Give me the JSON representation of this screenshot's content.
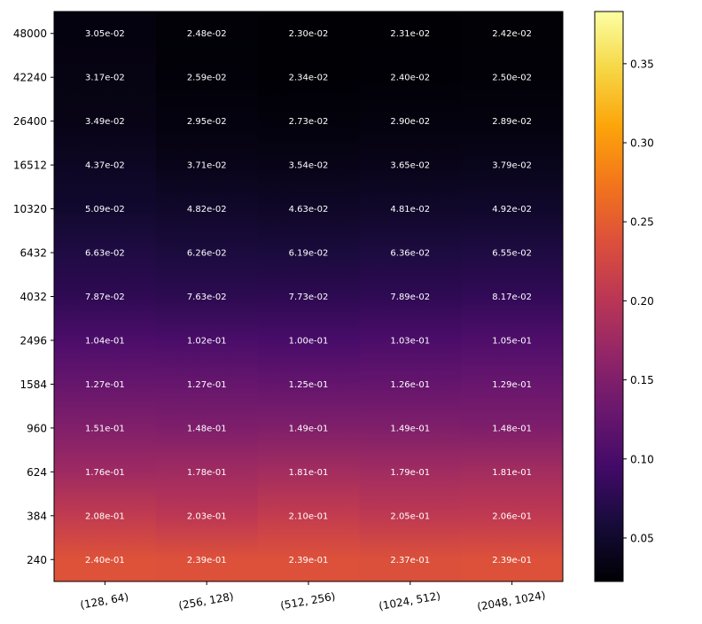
{
  "chart_data": {
    "type": "heatmap",
    "title": "",
    "xlabel": "",
    "ylabel": "",
    "x_categories": [
      "(128, 64)",
      "(256, 128)",
      "(512, 256)",
      "(1024, 512)",
      "(2048, 1024)"
    ],
    "y_categories": [
      "48000",
      "42240",
      "26400",
      "16512",
      "10320",
      "6432",
      "4032",
      "2496",
      "1584",
      "960",
      "624",
      "384",
      "240"
    ],
    "values": [
      [
        0.0305,
        0.0248,
        0.023,
        0.0231,
        0.0242
      ],
      [
        0.0317,
        0.0259,
        0.0234,
        0.024,
        0.025
      ],
      [
        0.0349,
        0.0295,
        0.0273,
        0.029,
        0.0289
      ],
      [
        0.0437,
        0.0371,
        0.0354,
        0.0365,
        0.0379
      ],
      [
        0.0509,
        0.0482,
        0.0463,
        0.0481,
        0.0492
      ],
      [
        0.0663,
        0.0626,
        0.0619,
        0.0636,
        0.0655
      ],
      [
        0.0787,
        0.0763,
        0.0773,
        0.0789,
        0.0817
      ],
      [
        0.104,
        0.102,
        0.1,
        0.103,
        0.105
      ],
      [
        0.127,
        0.127,
        0.125,
        0.126,
        0.129
      ],
      [
        0.151,
        0.148,
        0.149,
        0.149,
        0.148
      ],
      [
        0.176,
        0.178,
        0.181,
        0.179,
        0.181
      ],
      [
        0.208,
        0.203,
        0.21,
        0.205,
        0.206
      ],
      [
        0.24,
        0.239,
        0.239,
        0.237,
        0.239
      ]
    ],
    "cell_labels": [
      [
        "3.05e-02",
        "2.48e-02",
        "2.30e-02",
        "2.31e-02",
        "2.42e-02"
      ],
      [
        "3.17e-02",
        "2.59e-02",
        "2.34e-02",
        "2.40e-02",
        "2.50e-02"
      ],
      [
        "3.49e-02",
        "2.95e-02",
        "2.73e-02",
        "2.90e-02",
        "2.89e-02"
      ],
      [
        "4.37e-02",
        "3.71e-02",
        "3.54e-02",
        "3.65e-02",
        "3.79e-02"
      ],
      [
        "5.09e-02",
        "4.82e-02",
        "4.63e-02",
        "4.81e-02",
        "4.92e-02"
      ],
      [
        "6.63e-02",
        "6.26e-02",
        "6.19e-02",
        "6.36e-02",
        "6.55e-02"
      ],
      [
        "7.87e-02",
        "7.63e-02",
        "7.73e-02",
        "7.89e-02",
        "8.17e-02"
      ],
      [
        "1.04e-01",
        "1.02e-01",
        "1.00e-01",
        "1.03e-01",
        "1.05e-01"
      ],
      [
        "1.27e-01",
        "1.27e-01",
        "1.25e-01",
        "1.26e-01",
        "1.29e-01"
      ],
      [
        "1.51e-01",
        "1.48e-01",
        "1.49e-01",
        "1.49e-01",
        "1.48e-01"
      ],
      [
        "1.76e-01",
        "1.78e-01",
        "1.81e-01",
        "1.79e-01",
        "1.81e-01"
      ],
      [
        "2.08e-01",
        "2.03e-01",
        "2.10e-01",
        "2.05e-01",
        "2.06e-01"
      ],
      [
        "2.40e-01",
        "2.39e-01",
        "2.39e-01",
        "2.37e-01",
        "2.39e-01"
      ]
    ],
    "colormap": "inferno",
    "colorbar": {
      "vmin": 0.0225,
      "vmax": 0.383,
      "ticks": [
        0.05,
        0.1,
        0.15,
        0.2,
        0.25,
        0.3,
        0.35
      ],
      "tick_labels": [
        "0.05",
        "0.10",
        "0.15",
        "0.20",
        "0.25",
        "0.30",
        "0.35"
      ]
    },
    "shading": "smooth",
    "x_tick_rotation_deg": -10
  },
  "colors": {
    "cell_text": "#ffffff",
    "axis": "#000000",
    "background": "#ffffff"
  }
}
